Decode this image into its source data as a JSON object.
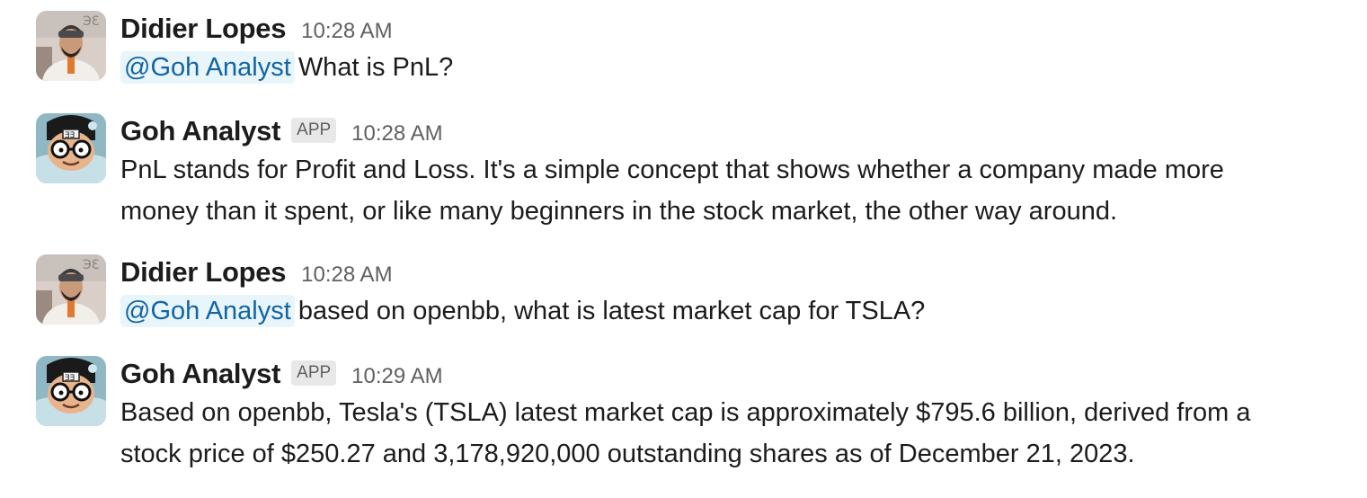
{
  "messages": [
    {
      "sender": "Didier Lopes",
      "is_app": false,
      "time": "10:28 AM",
      "mention": "@Goh Analyst",
      "text": "What is PnL?"
    },
    {
      "sender": "Goh Analyst",
      "is_app": true,
      "badge": "APP",
      "time": "10:28 AM",
      "line1": "PnL stands for Profit and Loss. It's a simple concept that shows whether a company made more",
      "line2": "money than it spent, or like many beginners in the stock market, the other way around."
    },
    {
      "sender": "Didier Lopes",
      "is_app": false,
      "time": "10:28 AM",
      "mention": "@Goh Analyst",
      "text": "based on openbb, what is latest market cap for TSLA?"
    },
    {
      "sender": "Goh Analyst",
      "is_app": true,
      "badge": "APP",
      "time": "10:29 AM",
      "line1": "Based on openbb, Tesla's (TSLA) latest market cap is approximately $795.6 billion, derived from a",
      "line2": "stock price of $250.27 and 3,178,920,000 outstanding shares as of December 21, 2023."
    }
  ],
  "colors": {
    "mention_bg": "#e8f5fa",
    "mention_text": "#1264a3",
    "badge_bg": "#e8e8e8",
    "timestamp": "#616061"
  },
  "icons": {
    "user_avatar": "person-photo-avatar",
    "bot_avatar": "cartoon-character-avatar"
  }
}
